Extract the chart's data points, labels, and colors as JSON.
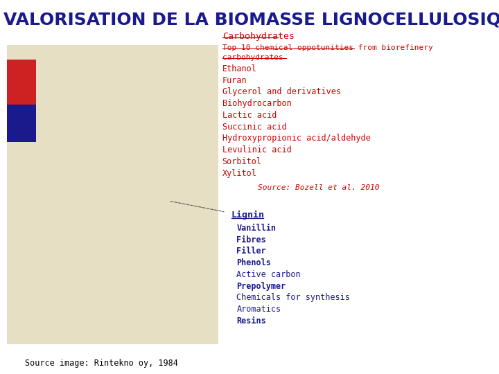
{
  "title": "VALORISATION DE LA BIOMASSE LIGNOCELLULOSIQUE",
  "title_color": "#1a1a8c",
  "title_fontsize": 18,
  "background_color": "#ffffff",
  "carbo_header": "Carbohydrates",
  "carbo_subheader_line1": "Top 10 chemical oppotunities from biorefinery",
  "carbo_subheader_line2": "carbohydrates",
  "carbo_items": [
    "Ethanol",
    "Furan",
    "Glycerol and derivatives",
    "Biohydrocarbon",
    "Lactic acid",
    "Succinic acid",
    "Hydroxypropionic acid/aldehyde",
    "Levulinic acid",
    "Sorbitol",
    "Xylitol"
  ],
  "carbo_source": "Source: Bozell et al. 2010",
  "carbo_header_color": "#cc0000",
  "carbo_text_color": "#cc0000",
  "carbo_source_color": "#cc0000",
  "lignin_header": "Lignin",
  "lignin_items": [
    "Vanillin",
    "Fibres",
    "Filler",
    "Phenols",
    "Active carbon",
    "Prepolymer",
    "Chemicals for synthesis",
    "Aromatics",
    "Resins"
  ],
  "lignin_header_color": "#1a1a8c",
  "lignin_text_color": "#1a1a8c",
  "lignin_bold_items": [
    "Vanillin",
    "Fibres",
    "Filler",
    "Phenols",
    "Prepolymer",
    "Resins"
  ],
  "bottom_source": "Source image: Rintekno oy, 1984",
  "bottom_source_color": "#000000",
  "red_rect_color": "#cc2222",
  "blue_rect_color": "#1a1a8c",
  "image_placeholder_color": "#c8b87a"
}
